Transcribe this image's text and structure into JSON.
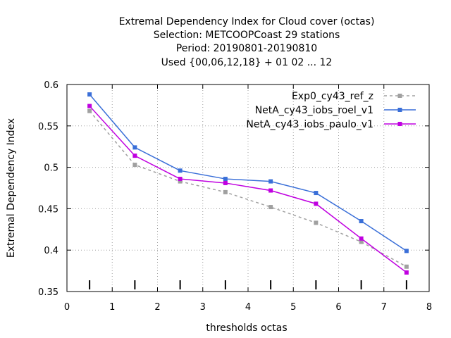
{
  "chart_data": {
    "type": "line",
    "title_lines": [
      "Extremal Dependency Index  for Cloud cover (octas)",
      "Selection: METCOOPCoast     29 stations",
      "Period: 20190801-20190810",
      "Used {00,06,12,18} + 01 02 ... 12"
    ],
    "xlabel": "thresholds octas",
    "ylabel": "Extremal Dependency Index",
    "xlim": [
      0,
      8
    ],
    "ylim": [
      0.35,
      0.6
    ],
    "x_ticks": [
      0,
      1,
      2,
      3,
      4,
      5,
      6,
      7,
      8
    ],
    "x_tick_labels": [
      "0",
      "1",
      "2",
      "3",
      "4",
      "5",
      "6",
      "7",
      "8"
    ],
    "y_ticks": [
      0.35,
      0.4,
      0.45,
      0.5,
      0.55,
      0.6
    ],
    "y_tick_labels": [
      "0.35",
      "0.4",
      "0.45",
      "0.5",
      "0.55",
      "0.6"
    ],
    "grid": true,
    "legend_position": "top-right",
    "x": [
      0.5,
      1.5,
      2.5,
      3.5,
      4.5,
      5.5,
      6.5,
      7.5
    ],
    "series": [
      {
        "name": "Exp0_cy43_ref_z",
        "color": "#a0a0a0",
        "dashed": true,
        "values": [
          0.568,
          0.503,
          0.483,
          0.47,
          0.452,
          0.433,
          0.41,
          0.38
        ]
      },
      {
        "name": "NetA_cy43_iobs_roel_v1",
        "color": "#3a6fd8",
        "dashed": false,
        "values": [
          0.588,
          0.524,
          0.496,
          0.486,
          0.483,
          0.469,
          0.435,
          0.399
        ]
      },
      {
        "name": "NetA_cy43_iobs_paulo_v1",
        "color": "#c000e0",
        "dashed": false,
        "values": [
          0.574,
          0.514,
          0.486,
          0.481,
          0.472,
          0.456,
          0.414,
          0.373
        ]
      }
    ]
  }
}
